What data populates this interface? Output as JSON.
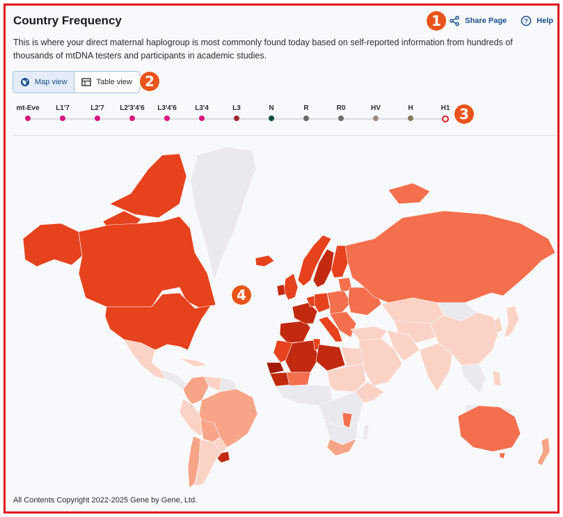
{
  "page": {
    "title": "Country Frequency",
    "description": "This is where your direct maternal haplogroup is most commonly found today based on self-reported information from hundreds of thousands of mtDNA testers and participants in academic studies.",
    "copyright": "All Contents Copyright 2022-2025 Gene by Gene, Ltd."
  },
  "toolbar": {
    "share_label": "Share Page",
    "share_icon": "share-icon",
    "help_label": "Help",
    "help_icon": "help-icon"
  },
  "view_toggle": {
    "map_label": "Map view",
    "map_icon": "globe-icon",
    "table_label": "Table view",
    "table_icon": "table-icon",
    "selected": "Map view"
  },
  "lineage": [
    {
      "label": "mt-Eve",
      "color": "#d9187f"
    },
    {
      "label": "L1'7",
      "color": "#d9187f"
    },
    {
      "label": "L2'7",
      "color": "#d9187f"
    },
    {
      "label": "L2'3'4'6",
      "color": "#d9187f"
    },
    {
      "label": "L3'4'6",
      "color": "#d9187f"
    },
    {
      "label": "L3'4",
      "color": "#d9187f"
    },
    {
      "label": "L3",
      "color": "#a22a35"
    },
    {
      "label": "N",
      "color": "#0e4b3f"
    },
    {
      "label": "R",
      "color": "#6b6b6b"
    },
    {
      "label": "R0",
      "color": "#6b6b6b"
    },
    {
      "label": "HV",
      "color": "#a08d80"
    },
    {
      "label": "H",
      "color": "#847a5a"
    },
    {
      "label": "H1",
      "color": "#d81c22",
      "selected": true
    }
  ],
  "annotations": [
    "1",
    "2",
    "3",
    "4"
  ],
  "map_colors": {
    "no_data": "#e9e9ee",
    "ocean": "#f8f9fc",
    "very_low": "#fbd3c6",
    "low": "#f8a488",
    "medium": "#f46f4d",
    "high": "#e6421d",
    "very_high": "#c22a10",
    "highest": "#a31a08"
  }
}
